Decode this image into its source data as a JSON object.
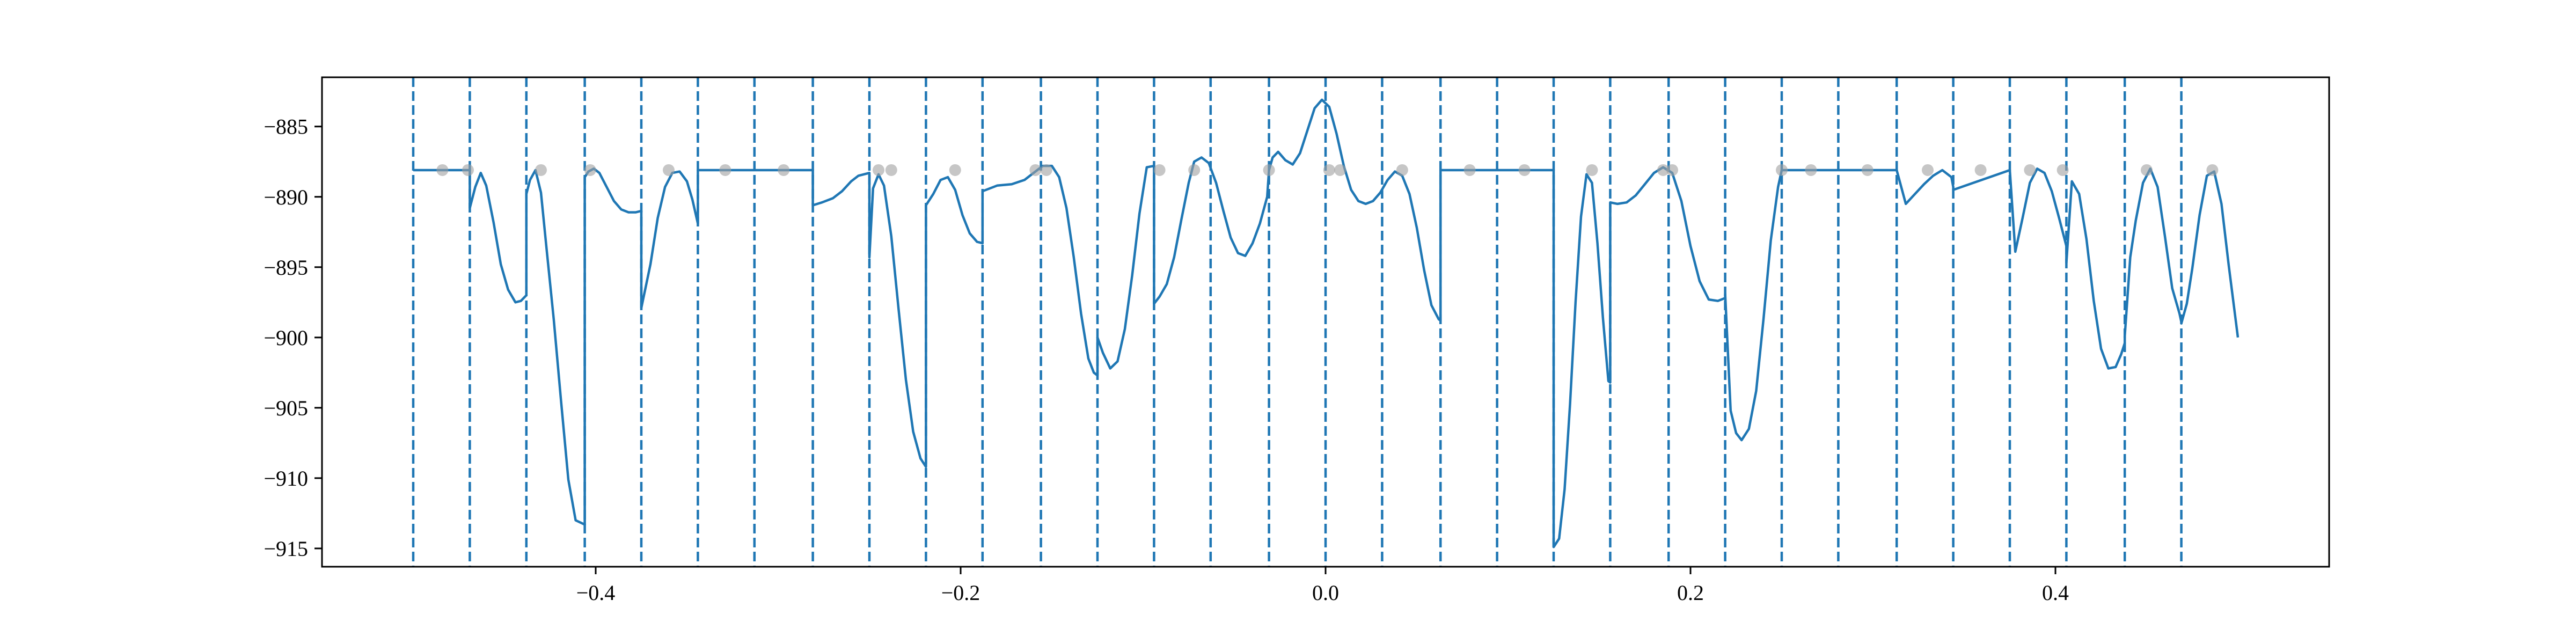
{
  "chart_data": {
    "type": "line",
    "title": "",
    "xlabel": "",
    "ylabel": "",
    "xlim": [
      -0.55,
      0.55
    ],
    "ylim": [
      -916.3,
      -881.5
    ],
    "grid": false,
    "xticks": [
      -0.4,
      -0.2,
      0.0,
      0.2,
      0.4
    ],
    "xtick_labels": [
      "−0.4",
      "−0.2",
      "0.0",
      "0.2",
      "0.4"
    ],
    "yticks": [
      -885,
      -890,
      -895,
      -900,
      -905,
      -910,
      -915
    ],
    "ytick_labels": [
      "−885",
      "−890",
      "−895",
      "−900",
      "−905",
      "−910",
      "−915"
    ],
    "colors": {
      "line": "#1f77b4",
      "vlines": "#1f77b4",
      "markers": "#a0a0a0",
      "axes": "#000000"
    },
    "vertical_dashed_lines": [
      -0.5,
      -0.469,
      -0.438,
      -0.406,
      -0.375,
      -0.344,
      -0.313,
      -0.281,
      -0.25,
      -0.219,
      -0.188,
      -0.156,
      -0.125,
      -0.094,
      -0.063,
      -0.031,
      0.0,
      0.031,
      0.063,
      0.094,
      0.125,
      0.156,
      0.188,
      0.219,
      0.25,
      0.281,
      0.313,
      0.344,
      0.375,
      0.406,
      0.438,
      0.469
    ],
    "series": [
      {
        "x": [
          -0.5,
          -0.469,
          -0.469,
          -0.466,
          -0.463,
          -0.46,
          -0.456,
          -0.452,
          -0.448,
          -0.444,
          -0.441,
          -0.438,
          -0.438,
          -0.436,
          -0.433,
          -0.43,
          -0.427,
          -0.423,
          -0.419,
          -0.415,
          -0.411,
          -0.406,
          -0.406,
          -0.404,
          -0.401,
          -0.398,
          -0.394,
          -0.39,
          -0.386,
          -0.382,
          -0.378,
          -0.375,
          -0.375,
          -0.37,
          -0.366,
          -0.362,
          -0.358,
          -0.354,
          -0.35,
          -0.347,
          -0.344,
          -0.344,
          -0.281,
          -0.281,
          -0.276,
          -0.27,
          -0.265,
          -0.26,
          -0.256,
          -0.253,
          -0.25,
          -0.25,
          -0.248,
          -0.245,
          -0.242,
          -0.238,
          -0.234,
          -0.23,
          -0.226,
          -0.222,
          -0.219,
          -0.219,
          -0.215,
          -0.211,
          -0.207,
          -0.203,
          -0.199,
          -0.195,
          -0.191,
          -0.188,
          -0.188,
          -0.18,
          -0.172,
          -0.165,
          -0.16,
          -0.155,
          -0.15,
          -0.146,
          -0.142,
          -0.138,
          -0.134,
          -0.13,
          -0.127,
          -0.125,
          -0.125,
          -0.122,
          -0.118,
          -0.114,
          -0.11,
          -0.106,
          -0.102,
          -0.098,
          -0.094,
          -0.094,
          -0.091,
          -0.087,
          -0.083,
          -0.079,
          -0.075,
          -0.072,
          -0.068,
          -0.064,
          -0.06,
          -0.056,
          -0.052,
          -0.048,
          -0.044,
          -0.04,
          -0.036,
          -0.032,
          -0.031,
          -0.029,
          -0.026,
          -0.022,
          -0.018,
          -0.014,
          -0.01,
          -0.006,
          -0.002,
          0.002,
          0.006,
          0.01,
          0.014,
          0.018,
          0.022,
          0.026,
          0.03,
          0.034,
          0.038,
          0.042,
          0.046,
          0.05,
          0.054,
          0.058,
          0.062,
          0.063,
          0.063,
          0.125,
          0.125,
          0.128,
          0.131,
          0.134,
          0.137,
          0.14,
          0.143,
          0.146,
          0.149,
          0.152,
          0.155,
          0.156,
          0.156,
          0.16,
          0.165,
          0.17,
          0.175,
          0.18,
          0.185,
          0.19,
          0.195,
          0.2,
          0.205,
          0.21,
          0.215,
          0.219,
          0.219,
          0.222,
          0.225,
          0.228,
          0.232,
          0.236,
          0.24,
          0.244,
          0.248,
          0.25,
          0.25,
          0.313,
          0.313,
          0.318,
          0.323,
          0.328,
          0.333,
          0.338,
          0.343,
          0.344,
          0.344,
          0.375,
          0.375,
          0.378,
          0.382,
          0.386,
          0.39,
          0.394,
          0.398,
          0.402,
          0.406,
          0.406,
          0.409,
          0.413,
          0.417,
          0.421,
          0.425,
          0.429,
          0.433,
          0.436,
          0.438,
          0.438,
          0.441,
          0.444,
          0.448,
          0.452,
          0.456,
          0.46,
          0.464,
          0.468,
          0.469,
          0.469,
          0.472,
          0.475,
          0.479,
          0.483,
          0.487,
          0.491,
          0.495,
          0.5
        ],
        "y": [
          -888.1,
          -888.1,
          -890.8,
          -889.3,
          -888.3,
          -889.2,
          -891.8,
          -894.8,
          -896.6,
          -897.5,
          -897.4,
          -897.0,
          -889.8,
          -888.8,
          -888.1,
          -889.7,
          -893.6,
          -898.7,
          -904.5,
          -910.1,
          -913.0,
          -913.3,
          -888.6,
          -888.2,
          -888.0,
          -888.3,
          -889.3,
          -890.3,
          -890.9,
          -891.1,
          -891.1,
          -891.0,
          -897.9,
          -894.8,
          -891.5,
          -889.3,
          -888.3,
          -888.2,
          -888.9,
          -890.2,
          -891.9,
          -888.1,
          -888.1,
          -890.6,
          -890.4,
          -890.1,
          -889.6,
          -888.9,
          -888.5,
          -888.4,
          -888.3,
          -894.3,
          -889.4,
          -888.4,
          -889.2,
          -892.8,
          -898.0,
          -903.0,
          -906.7,
          -908.6,
          -909.2,
          -890.6,
          -889.8,
          -888.8,
          -888.6,
          -889.5,
          -891.3,
          -892.6,
          -893.2,
          -893.3,
          -889.6,
          -889.2,
          -889.1,
          -888.8,
          -888.3,
          -887.8,
          -887.8,
          -888.6,
          -890.8,
          -894.3,
          -898.3,
          -901.5,
          -902.5,
          -902.7,
          -900.0,
          -901.1,
          -902.2,
          -901.7,
          -899.4,
          -895.6,
          -891.2,
          -887.9,
          -887.8,
          -897.6,
          -897.1,
          -896.2,
          -894.3,
          -891.6,
          -889.0,
          -887.5,
          -887.2,
          -887.6,
          -889.0,
          -891.0,
          -892.9,
          -894.0,
          -894.2,
          -893.3,
          -891.9,
          -890.0,
          -888.1,
          -887.2,
          -886.8,
          -887.4,
          -887.7,
          -886.9,
          -885.3,
          -883.7,
          -883.1,
          -883.6,
          -885.5,
          -887.8,
          -889.5,
          -890.3,
          -890.5,
          -890.3,
          -889.7,
          -888.8,
          -888.2,
          -888.5,
          -889.8,
          -892.2,
          -895.2,
          -897.7,
          -898.7,
          -898.8,
          -888.1,
          -888.1,
          -914.9,
          -914.3,
          -910.8,
          -904.7,
          -897.5,
          -891.4,
          -888.4,
          -889.0,
          -893.3,
          -898.6,
          -903.1,
          -903.2,
          -890.4,
          -890.5,
          -890.4,
          -889.9,
          -889.1,
          -888.3,
          -887.9,
          -888.3,
          -890.3,
          -893.5,
          -896.0,
          -897.3,
          -897.4,
          -897.2,
          -896.9,
          -905.2,
          -906.8,
          -907.3,
          -906.5,
          -903.8,
          -898.7,
          -893.1,
          -889.3,
          -888.1,
          -888.1,
          -888.1,
          -888.1,
          -890.5,
          -889.8,
          -889.1,
          -888.5,
          -888.1,
          -888.6,
          -889.3,
          -889.5,
          -888.1,
          -888.1,
          -893.9,
          -891.5,
          -889.0,
          -888.0,
          -888.3,
          -889.6,
          -891.5,
          -893.5,
          -894.7,
          -888.9,
          -889.8,
          -893.0,
          -897.4,
          -900.8,
          -902.2,
          -902.1,
          -901.2,
          -900.4,
          -899.9,
          -894.3,
          -891.7,
          -889.0,
          -888.0,
          -889.3,
          -892.8,
          -896.5,
          -898.3,
          -898.9,
          -899.0,
          -897.6,
          -895.1,
          -891.3,
          -888.5,
          -888.2,
          -890.5,
          -894.9,
          -900.0
        ]
      }
    ],
    "markers": {
      "x": [
        -0.484,
        -0.47,
        -0.43,
        -0.403,
        -0.36,
        -0.329,
        -0.297,
        -0.245,
        -0.238,
        -0.203,
        -0.159,
        -0.153,
        -0.091,
        -0.072,
        -0.031,
        0.002,
        0.008,
        0.042,
        0.079,
        0.109,
        0.146,
        0.185,
        0.19,
        0.25,
        0.266,
        0.297,
        0.33,
        0.359,
        0.386,
        0.404,
        0.45,
        0.486
      ],
      "y": [
        -888.1,
        -888.1,
        -888.1,
        -888.1,
        -888.1,
        -888.1,
        -888.1,
        -888.1,
        -888.1,
        -888.1,
        -888.1,
        -888.1,
        -888.1,
        -888.1,
        -888.1,
        -888.1,
        -888.1,
        -888.1,
        -888.1,
        -888.1,
        -888.1,
        -888.1,
        -888.1,
        -888.1,
        -888.1,
        -888.1,
        -888.1,
        -888.1,
        -888.1,
        -888.1,
        -888.1,
        -888.1
      ]
    }
  }
}
